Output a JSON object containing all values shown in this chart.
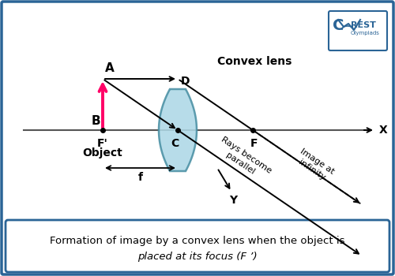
{
  "bg_color": "#ffffff",
  "border_color": "#2a6496",
  "convex_lens_label": "Convex lens",
  "object_label": "Object",
  "label_A": "A",
  "label_B": "B",
  "label_C": "C",
  "label_D": "D",
  "label_F_left": "F'",
  "label_F_right": "F",
  "label_f": "f",
  "label_X": "X",
  "label_Y": "Y",
  "rays_parallel_label": "Rays become\nparallel",
  "image_at_infinity_label": "Image at\ninfinity",
  "object_arrow_color": "#ff0066",
  "lens_fill_color": "#add8e6",
  "lens_edge_color": "#4a90a4",
  "optical_axis_color": "#555555",
  "caption_text_line1": "Formation of image by a convex lens when the object is",
  "caption_text_line2": "placed at its focus (F ’)"
}
